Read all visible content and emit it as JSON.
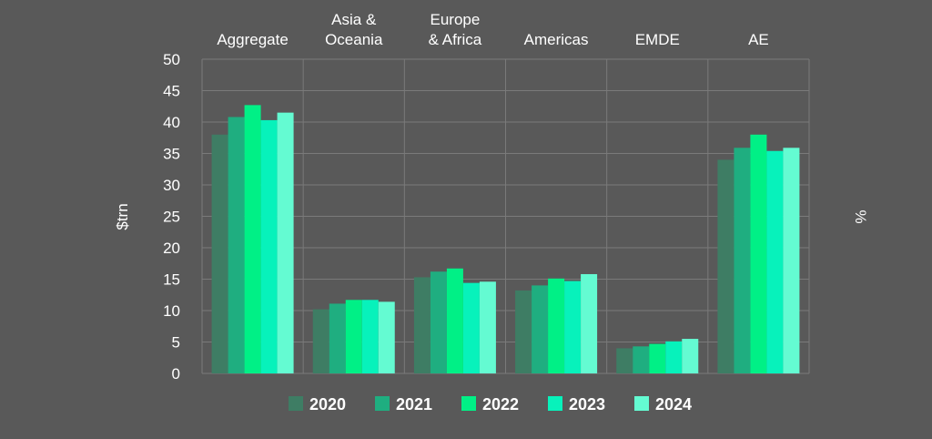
{
  "chart_data": {
    "type": "bar",
    "ylabel": "$trn",
    "y2label": "%",
    "ylim": [
      0,
      50
    ],
    "yticks": [
      0,
      5,
      10,
      15,
      20,
      25,
      30,
      35,
      40,
      45,
      50
    ],
    "grid": true,
    "legend_position": "bottom",
    "categories": [
      {
        "lines": [
          "Aggregate"
        ]
      },
      {
        "lines": [
          "Asia &",
          "Oceania"
        ]
      },
      {
        "lines": [
          "Europe",
          "& Africa"
        ]
      },
      {
        "lines": [
          "Americas"
        ]
      },
      {
        "lines": [
          "EMDE"
        ]
      },
      {
        "lines": [
          "AE"
        ]
      }
    ],
    "series": [
      {
        "name": "2020",
        "color": "#3e7d64",
        "values": [
          38.0,
          10.2,
          15.3,
          13.2,
          4.0,
          34.0
        ]
      },
      {
        "name": "2021",
        "color": "#1fae80",
        "values": [
          40.8,
          11.1,
          16.2,
          14.0,
          4.3,
          35.9
        ]
      },
      {
        "name": "2022",
        "color": "#00f086",
        "values": [
          42.7,
          11.7,
          16.7,
          15.1,
          4.7,
          38.0
        ]
      },
      {
        "name": "2023",
        "color": "#07f2bb",
        "values": [
          40.3,
          11.7,
          14.4,
          14.7,
          5.1,
          35.4
        ]
      },
      {
        "name": "2024",
        "color": "#64fbd2",
        "values": [
          41.5,
          11.4,
          14.6,
          15.8,
          5.5,
          35.9
        ]
      }
    ]
  }
}
